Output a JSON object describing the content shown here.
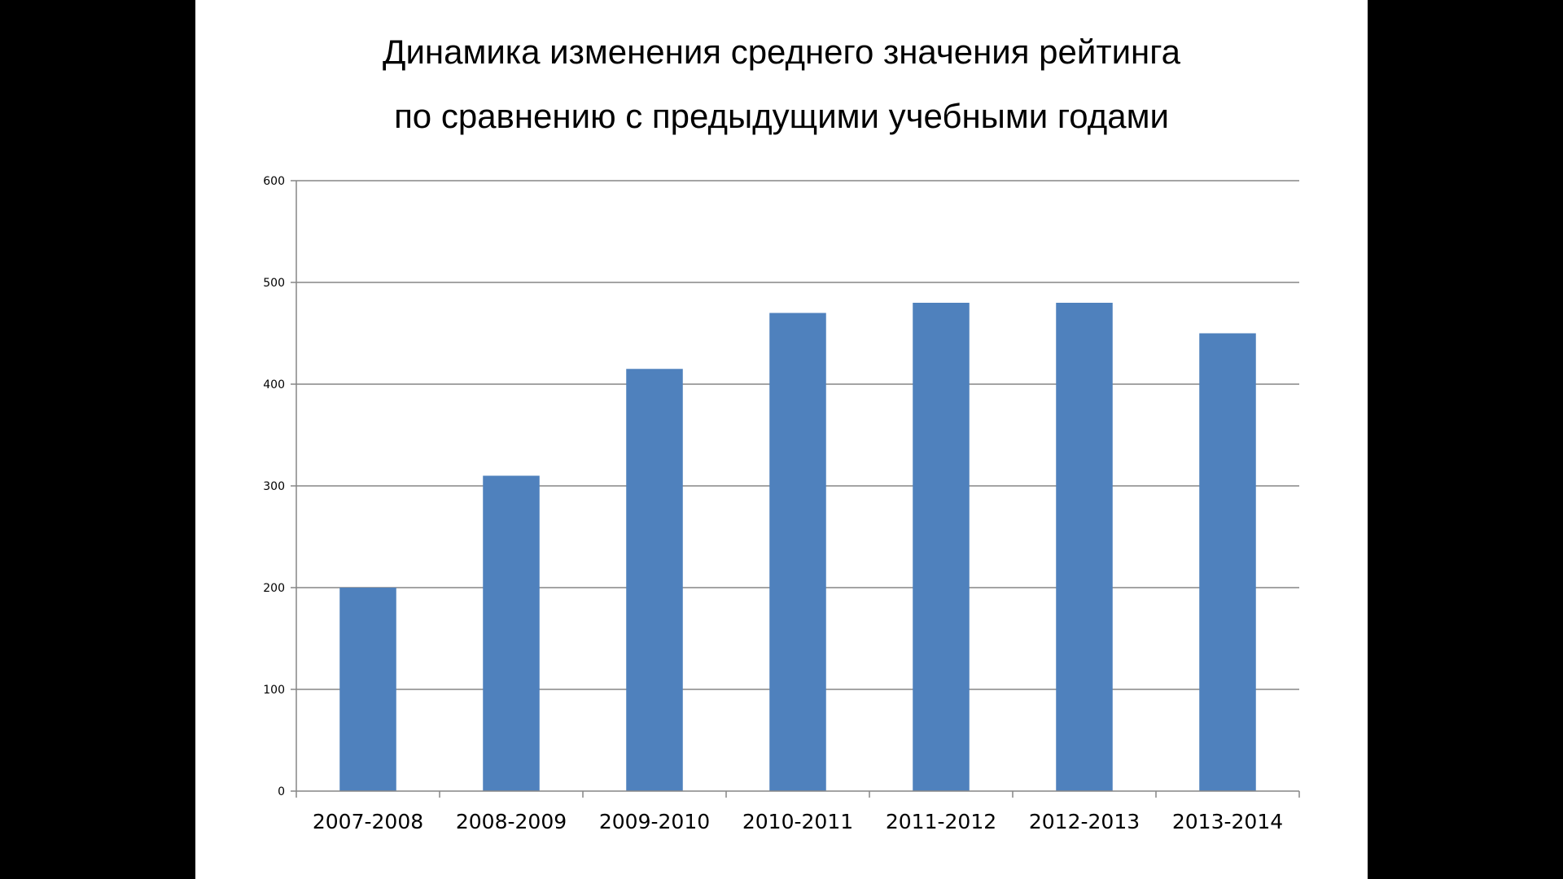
{
  "chart_data": {
    "type": "bar",
    "title": [
      "Динамика изменения среднего значения рейтинга",
      "по сравнению с предыдущими учебными годами"
    ],
    "categories": [
      "2007-2008",
      "2008-2009",
      "2009-2010",
      "2010-2011",
      "2011-2012",
      "2012-2013",
      "2013-2014"
    ],
    "values": [
      200,
      310,
      415,
      470,
      480,
      480,
      450
    ],
    "ylim": [
      0,
      600
    ],
    "yticks": [
      0,
      100,
      200,
      300,
      400,
      500,
      600
    ],
    "grid": true,
    "legend": "none",
    "bar_color": "#4f81bd",
    "grid_color": "#868686"
  }
}
